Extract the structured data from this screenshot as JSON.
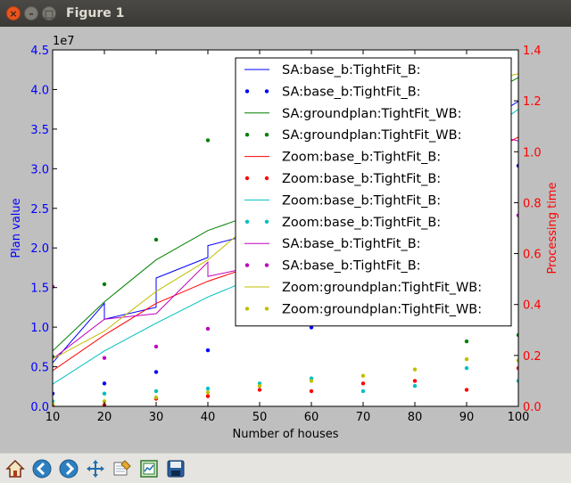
{
  "window": {
    "title": "Figure 1",
    "close_glyph": "×",
    "min_glyph": "–",
    "max_glyph": "□"
  },
  "toolbar": {
    "buttons": [
      {
        "name": "home-icon"
      },
      {
        "name": "back-icon"
      },
      {
        "name": "forward-icon"
      },
      {
        "name": "pan-icon"
      },
      {
        "name": "zoom-icon"
      },
      {
        "name": "subplots-icon"
      },
      {
        "name": "save-icon"
      }
    ]
  },
  "chart_data": {
    "type": "line",
    "xlabel": "Number of houses",
    "ylabel_left": "Plan value",
    "ylabel_right": "Processing time",
    "left_axis_offset_text": "1e7",
    "xlim": [
      10,
      100
    ],
    "ylim_left": [
      0,
      4.5
    ],
    "ylim_right": [
      0,
      1.4
    ],
    "x_ticks": [
      10,
      20,
      30,
      40,
      50,
      60,
      70,
      80,
      90,
      100
    ],
    "x_tick_labels": [
      "10",
      "20",
      "30",
      "40",
      "50",
      "60",
      "70",
      "80",
      "90",
      "100"
    ],
    "y_ticks_left": [
      0.0,
      0.5,
      1.0,
      1.5,
      2.0,
      2.5,
      3.0,
      3.5,
      4.0,
      4.5
    ],
    "y_tick_labels_left": [
      "0.0",
      "0.5",
      "1.0",
      "1.5",
      "2.0",
      "2.5",
      "3.0",
      "3.5",
      "4.0",
      "4.5"
    ],
    "y_ticks_right": [
      0.0,
      0.2,
      0.4,
      0.6,
      0.8,
      1.0,
      1.2,
      1.4
    ],
    "y_tick_labels_right": [
      "0.0",
      "0.2",
      "0.4",
      "0.6",
      "0.8",
      "1.0",
      "1.2",
      "1.4"
    ],
    "legend_placement": "upper right",
    "colors": {
      "left_axis": "#0000ff",
      "right_axis": "#ff0000"
    },
    "series": [
      {
        "name": "SA:base_b:TightFit_B:",
        "style": "line",
        "color": "#0000ff",
        "axis": "left",
        "x": [
          10,
          20,
          20,
          30,
          30,
          40,
          40,
          50,
          60,
          70,
          80,
          90,
          100
        ],
        "y": [
          0.55,
          1.3,
          1.1,
          1.25,
          1.62,
          1.88,
          2.03,
          2.2,
          2.5,
          2.8,
          3.1,
          3.45,
          3.85
        ]
      },
      {
        "name": "SA:base_b:TightFit_B:",
        "style": "dots",
        "color": "#0000ff",
        "axis": "right",
        "x": [
          10,
          20,
          30,
          40,
          50,
          60,
          70,
          80,
          90,
          100
        ],
        "y": [
          0.05,
          0.09,
          0.135,
          0.22,
          0.33,
          0.31,
          0.48,
          0.325,
          0.5,
          0.945
        ]
      },
      {
        "name": "SA:groundplan:TightFit_WB:",
        "style": "line",
        "color": "#008000",
        "axis": "left",
        "x": [
          10,
          20,
          30,
          40,
          50,
          60,
          70,
          80,
          90,
          100
        ],
        "y": [
          0.7,
          1.32,
          1.85,
          2.22,
          2.45,
          2.8,
          3.1,
          3.45,
          3.8,
          4.15
        ]
      },
      {
        "name": "SA:groundplan:TightFit_WB:",
        "style": "dots",
        "color": "#008000",
        "axis": "right",
        "x": [
          10,
          20,
          30,
          40,
          50,
          60,
          70,
          80,
          90,
          100
        ],
        "y": [
          0.195,
          0.48,
          0.655,
          1.045,
          0.74,
          0.42,
          0.55,
          0.42,
          0.255,
          0.28
        ]
      },
      {
        "name": "Zoom:base_b:TightFit_B:",
        "style": "line",
        "color": "#ff0000",
        "axis": "left",
        "x": [
          10,
          20,
          30,
          40,
          50,
          60,
          70,
          80,
          90,
          100
        ],
        "y": [
          0.45,
          0.9,
          1.3,
          1.58,
          1.8,
          2.1,
          2.4,
          2.7,
          3.05,
          3.4
        ]
      },
      {
        "name": "Zoom:base_b:TightFit_B:",
        "style": "dots",
        "color": "#ff0000",
        "axis": "right",
        "x": [
          10,
          20,
          30,
          40,
          50,
          60,
          70,
          80,
          90,
          100
        ],
        "y": [
          0.005,
          0.005,
          0.03,
          0.04,
          0.065,
          0.06,
          0.09,
          0.1,
          0.065,
          0.15
        ]
      },
      {
        "name": "Zoom:base_b:TightFit_B:",
        "style": "line",
        "color": "#00bfbf",
        "axis": "left",
        "x": [
          10,
          20,
          30,
          40,
          50,
          60,
          70,
          80,
          90,
          100
        ],
        "y": [
          0.28,
          0.7,
          1.05,
          1.38,
          1.65,
          2.0,
          2.4,
          2.8,
          3.3,
          3.75
        ]
      },
      {
        "name": "Zoom:base_b:TightFit_B:",
        "style": "dots",
        "color": "#00bfbf",
        "axis": "right",
        "x": [
          10,
          20,
          30,
          40,
          50,
          60,
          70,
          80,
          90,
          100
        ],
        "y": [
          0.02,
          0.05,
          0.06,
          0.07,
          0.09,
          0.11,
          0.06,
          0.08,
          0.15,
          0.1
        ]
      },
      {
        "name": "SA:base_b:TightFit_B:",
        "style": "line",
        "color": "#bf00bf",
        "axis": "left",
        "x": [
          10,
          20,
          30,
          40,
          40,
          50,
          60,
          70,
          80,
          90,
          90,
          100
        ],
        "y": [
          0.6,
          1.1,
          1.17,
          1.82,
          1.64,
          1.78,
          2.3,
          2.6,
          2.95,
          3.38,
          3.5,
          3.35
        ]
      },
      {
        "name": "SA:base_b:TightFit_B:",
        "style": "dots",
        "color": "#bf00bf",
        "axis": "right",
        "x": [
          10,
          20,
          30,
          40,
          50,
          60,
          70,
          80,
          90,
          100
        ],
        "y": [
          0.47,
          0.19,
          0.235,
          0.305,
          0.56,
          0.33,
          0.56,
          0.92,
          1.05,
          0.75
        ]
      },
      {
        "name": "Zoom:groundplan:TightFit_WB:",
        "style": "line",
        "color": "#bfbf00",
        "axis": "left",
        "x": [
          10,
          20,
          30,
          40,
          50,
          60,
          70,
          80,
          90,
          100
        ],
        "y": [
          0.6,
          0.95,
          1.45,
          1.85,
          2.4,
          2.85,
          3.3,
          3.7,
          4.05,
          4.2
        ]
      },
      {
        "name": "Zoom:groundplan:TightFit_WB:",
        "style": "dots",
        "color": "#bfbf00",
        "axis": "right",
        "x": [
          10,
          20,
          30,
          40,
          50,
          60,
          70,
          80,
          90,
          100
        ],
        "y": [
          0.01,
          0.02,
          0.035,
          0.055,
          0.08,
          0.1,
          0.12,
          0.145,
          0.185,
          0.18
        ]
      }
    ]
  }
}
